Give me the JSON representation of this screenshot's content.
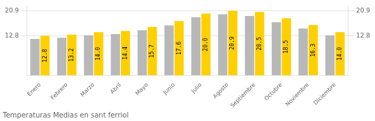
{
  "chart_data": {
    "type": "bar",
    "title": "Temperaturas Medias en sant ferriol",
    "categories": [
      "Enero",
      "Febrero",
      "Marzo",
      "Abril",
      "Mayo",
      "Junio",
      "Julio",
      "Agosto",
      "Septiembre",
      "Octubre",
      "Noviembre",
      "Diciembre"
    ],
    "series": [
      {
        "color": "#B8B8B8",
        "values": [
          11.8,
          12.2,
          13.0,
          13.4,
          14.6,
          16.2,
          18.8,
          19.8,
          19.2,
          17.2,
          15.2,
          13.0
        ]
      },
      {
        "color": "#FFD000",
        "values": [
          12.8,
          13.2,
          14.0,
          14.4,
          15.7,
          17.6,
          20.0,
          20.9,
          20.5,
          18.5,
          16.3,
          14.0
        ],
        "data_labels": true,
        "value_labels": [
          "12.8",
          "13.2",
          "14.0",
          "14.4",
          "15.7",
          "17.6",
          "20.0",
          "20.9",
          "20.5",
          "18.5",
          "16.3",
          "14.0"
        ]
      }
    ],
    "ylim": [
      0,
      22.5
    ],
    "yticks": [
      12.8,
      20.9
    ],
    "y2lim": [
      0,
      22.5
    ],
    "y2ticks": [
      12.8,
      20.9
    ],
    "grid": true
  }
}
